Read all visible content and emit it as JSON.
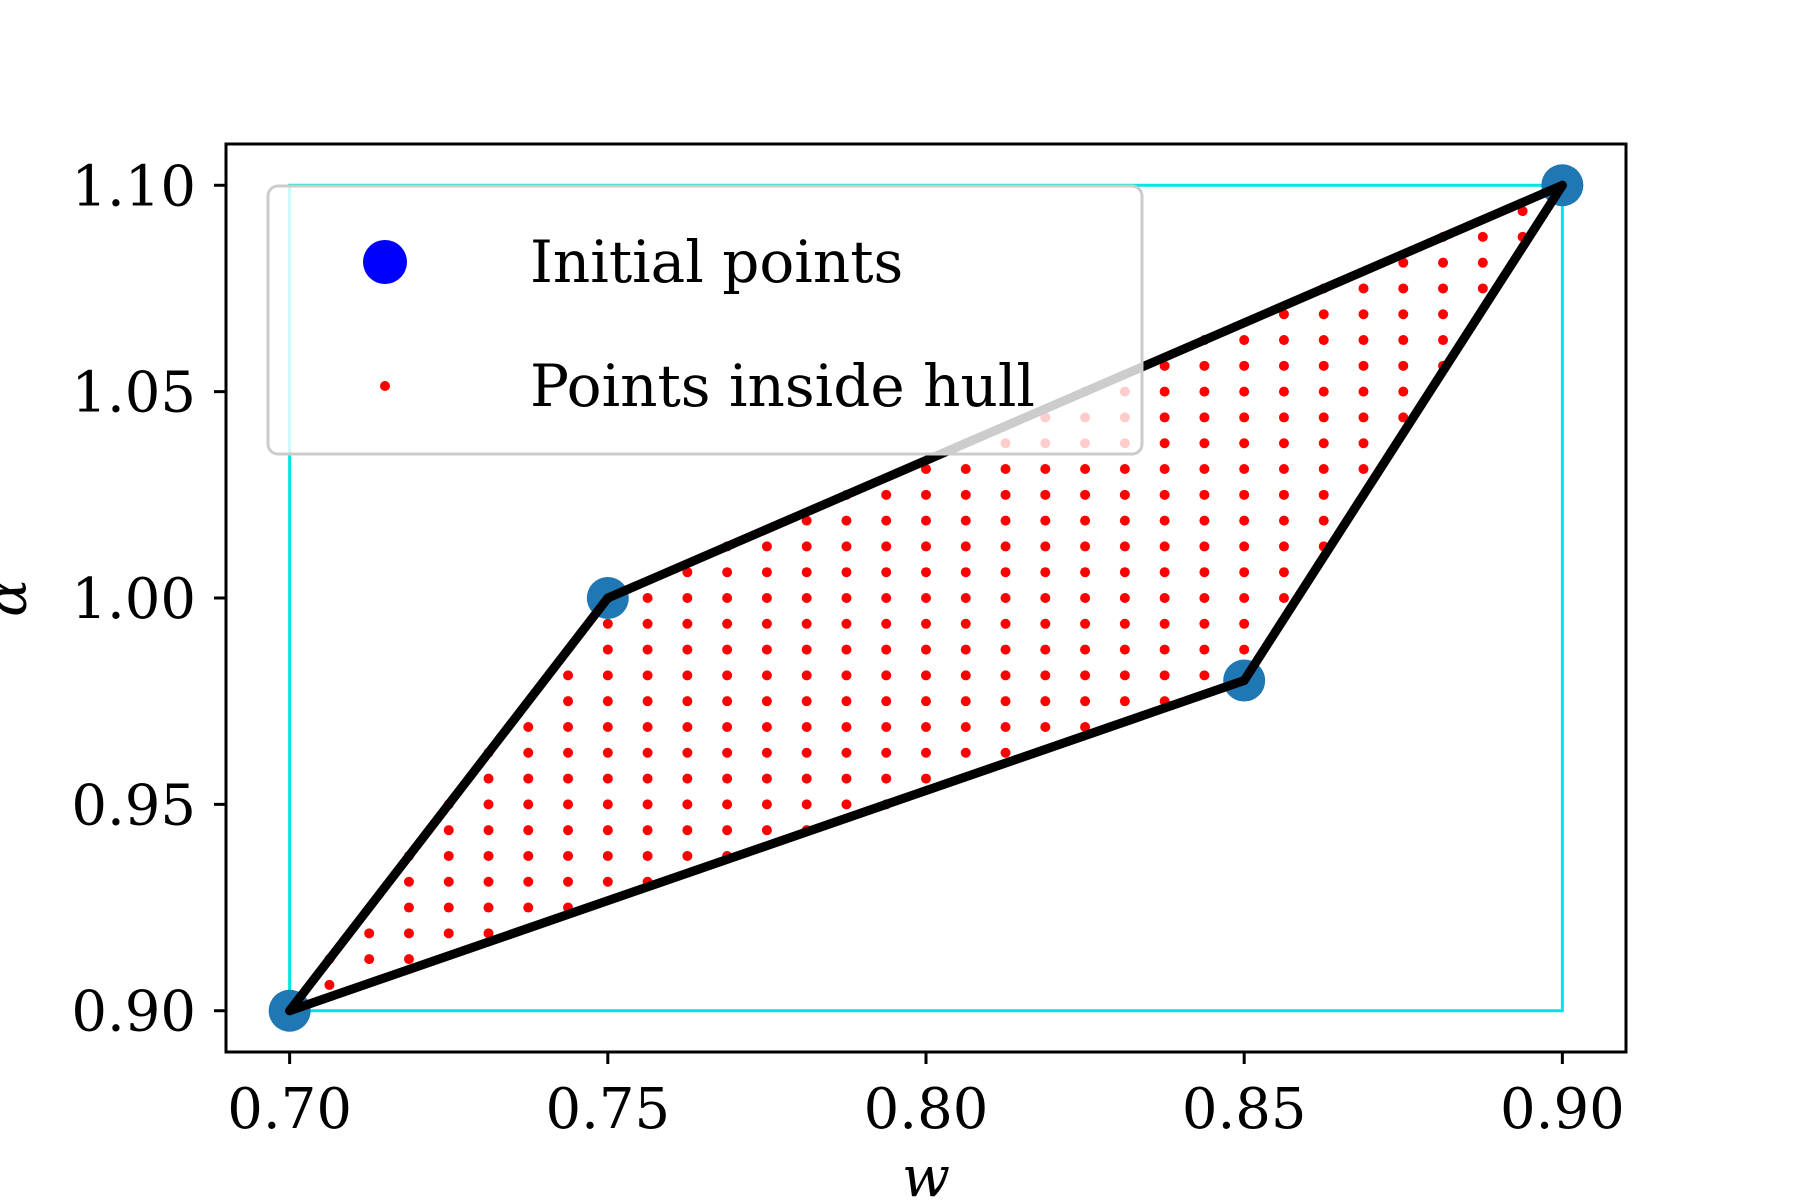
{
  "chart_data": {
    "type": "scatter",
    "title": "",
    "xlabel": "w",
    "ylabel": "α",
    "xlim": [
      0.69,
      0.91
    ],
    "ylim": [
      0.89,
      1.11
    ],
    "xticks": [
      "0.70",
      "0.75",
      "0.80",
      "0.85",
      "0.90"
    ],
    "yticks": [
      "0.90",
      "0.95",
      "1.00",
      "1.05",
      "1.10"
    ],
    "grid": false,
    "legend_position": "upper-left",
    "bounding_box": {
      "x": [
        0.7,
        0.9
      ],
      "y": [
        0.9,
        1.1
      ],
      "color": "#00e5e5"
    },
    "hull": {
      "color": "#000000",
      "vertices": [
        [
          0.7,
          0.9
        ],
        [
          0.75,
          1.0
        ],
        [
          0.9,
          1.1
        ],
        [
          0.85,
          0.98
        ]
      ]
    },
    "series": [
      {
        "name": "Initial points",
        "marker": "large-circle",
        "color": "#1f77b4",
        "legend_color": "#0000ff",
        "points": [
          [
            0.7,
            0.9
          ],
          [
            0.75,
            1.0
          ],
          [
            0.85,
            0.98
          ],
          [
            0.9,
            1.1
          ]
        ]
      },
      {
        "name": "Points inside hull",
        "marker": "small-dot",
        "color": "#ff0000",
        "grid_spacing": [
          0.00625,
          0.00625
        ],
        "region": "inside hull"
      }
    ]
  }
}
